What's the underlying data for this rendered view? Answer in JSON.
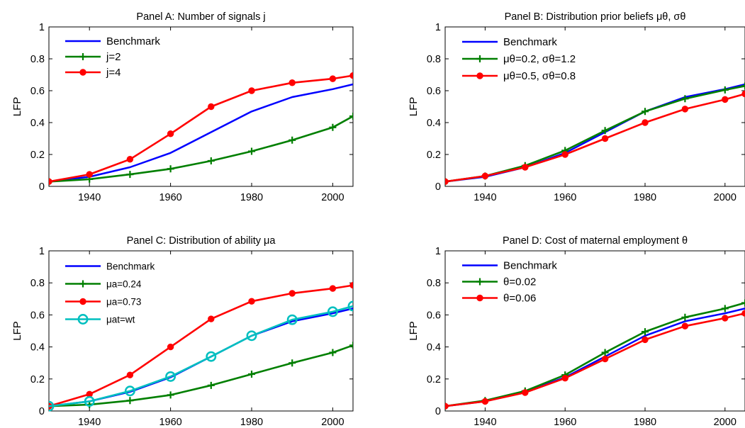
{
  "chart_data": [
    {
      "id": "A",
      "type": "line",
      "title": "Panel A: Number of signals j",
      "ylabel": "LFP",
      "xlim": [
        1930,
        2005
      ],
      "ylim": [
        0,
        1
      ],
      "xticks": [
        1940,
        1960,
        1980,
        2000
      ],
      "yticks": [
        0,
        0.2,
        0.4,
        0.6,
        0.8,
        1
      ],
      "ytick_labels": [
        "0",
        "0.2",
        "0.4",
        "0.6",
        "0.8",
        "1"
      ],
      "grid": false,
      "legend_position": "top-left",
      "x": [
        1930,
        1940,
        1950,
        1960,
        1970,
        1980,
        1990,
        2000,
        2005
      ],
      "series": [
        {
          "name": "Benchmark",
          "color": "#0000ff",
          "marker": "none",
          "values": [
            0.03,
            0.06,
            0.12,
            0.21,
            0.34,
            0.47,
            0.56,
            0.61,
            0.64
          ]
        },
        {
          "name": "j=2",
          "color": "#007f00",
          "marker": "plus",
          "values": [
            0.03,
            0.045,
            0.075,
            0.11,
            0.16,
            0.22,
            0.29,
            0.37,
            0.44
          ]
        },
        {
          "name": "j=4",
          "color": "#ff0000",
          "marker": "dot",
          "values": [
            0.03,
            0.075,
            0.17,
            0.33,
            0.5,
            0.6,
            0.65,
            0.675,
            0.695
          ]
        }
      ]
    },
    {
      "id": "B",
      "type": "line",
      "title": "Panel B: Distribution prior beliefs μθ, σθ",
      "ylabel": "LFP",
      "xlim": [
        1930,
        2005
      ],
      "ylim": [
        0,
        1
      ],
      "xticks": [
        1940,
        1960,
        1980,
        2000
      ],
      "yticks": [
        0,
        0.2,
        0.4,
        0.6,
        0.8,
        1
      ],
      "ytick_labels": [
        "0",
        "0.2",
        "0.4",
        "0.6",
        "0.8",
        "1"
      ],
      "grid": false,
      "legend_position": "top-left",
      "x": [
        1930,
        1940,
        1950,
        1960,
        1970,
        1980,
        1990,
        2000,
        2005
      ],
      "series": [
        {
          "name": "Benchmark",
          "color": "#0000ff",
          "marker": "none",
          "values": [
            0.03,
            0.06,
            0.12,
            0.21,
            0.34,
            0.47,
            0.56,
            0.61,
            0.64
          ]
        },
        {
          "name": "μθ=0.2, σθ=1.2",
          "color": "#007f00",
          "marker": "plus",
          "values": [
            0.03,
            0.065,
            0.13,
            0.225,
            0.35,
            0.47,
            0.55,
            0.605,
            0.63
          ]
        },
        {
          "name": "μθ=0.5, σθ=0.8",
          "color": "#ff0000",
          "marker": "dot",
          "values": [
            0.03,
            0.065,
            0.12,
            0.2,
            0.3,
            0.4,
            0.485,
            0.545,
            0.58
          ]
        }
      ]
    },
    {
      "id": "C",
      "type": "line",
      "title": "Panel C: Distribution of ability μa",
      "ylabel": "LFP",
      "xlim": [
        1930,
        2005
      ],
      "ylim": [
        0,
        1
      ],
      "xticks": [
        1940,
        1960,
        1980,
        2000
      ],
      "yticks": [
        0,
        0.2,
        0.4,
        0.6,
        0.8,
        1
      ],
      "ytick_labels": [
        "0",
        "0.2",
        "0.4",
        "0.6",
        "0.8",
        "1"
      ],
      "grid": false,
      "legend_position": "top-left",
      "x": [
        1930,
        1940,
        1950,
        1960,
        1970,
        1980,
        1990,
        2000,
        2005
      ],
      "series": [
        {
          "name": "Benchmark",
          "color": "#0000ff",
          "marker": "none",
          "values": [
            0.03,
            0.06,
            0.12,
            0.21,
            0.34,
            0.47,
            0.56,
            0.61,
            0.64
          ]
        },
        {
          "name": "μa=0.24",
          "color": "#007f00",
          "marker": "plus",
          "values": [
            0.03,
            0.04,
            0.065,
            0.1,
            0.16,
            0.23,
            0.3,
            0.365,
            0.41
          ]
        },
        {
          "name": "μa=0.73",
          "color": "#ff0000",
          "marker": "dot",
          "values": [
            0.03,
            0.105,
            0.225,
            0.4,
            0.575,
            0.685,
            0.735,
            0.765,
            0.785
          ]
        },
        {
          "name": "μat=wt",
          "color": "#00bfbf",
          "marker": "circle",
          "values": [
            0.03,
            0.06,
            0.125,
            0.215,
            0.34,
            0.47,
            0.57,
            0.62,
            0.655
          ]
        }
      ]
    },
    {
      "id": "D",
      "type": "line",
      "title": "Panel D: Cost of maternal employment θ",
      "ylabel": "LFP",
      "xlim": [
        1930,
        2005
      ],
      "ylim": [
        0,
        1
      ],
      "xticks": [
        1940,
        1960,
        1980,
        2000
      ],
      "yticks": [
        0,
        0.2,
        0.4,
        0.6,
        0.8,
        1
      ],
      "ytick_labels": [
        "0",
        "0.2",
        "0.4",
        "0.6",
        "0.8",
        "1"
      ],
      "grid": false,
      "legend_position": "top-left",
      "x": [
        1930,
        1940,
        1950,
        1960,
        1970,
        1980,
        1990,
        2000,
        2005
      ],
      "series": [
        {
          "name": "Benchmark",
          "color": "#0000ff",
          "marker": "none",
          "values": [
            0.03,
            0.06,
            0.12,
            0.21,
            0.34,
            0.47,
            0.56,
            0.61,
            0.64
          ]
        },
        {
          "name": "θ=0.02",
          "color": "#007f00",
          "marker": "plus",
          "values": [
            0.03,
            0.065,
            0.125,
            0.225,
            0.365,
            0.495,
            0.585,
            0.64,
            0.675
          ]
        },
        {
          "name": "θ=0.06",
          "color": "#ff0000",
          "marker": "dot",
          "values": [
            0.03,
            0.06,
            0.115,
            0.205,
            0.325,
            0.445,
            0.53,
            0.58,
            0.61
          ]
        }
      ]
    }
  ]
}
